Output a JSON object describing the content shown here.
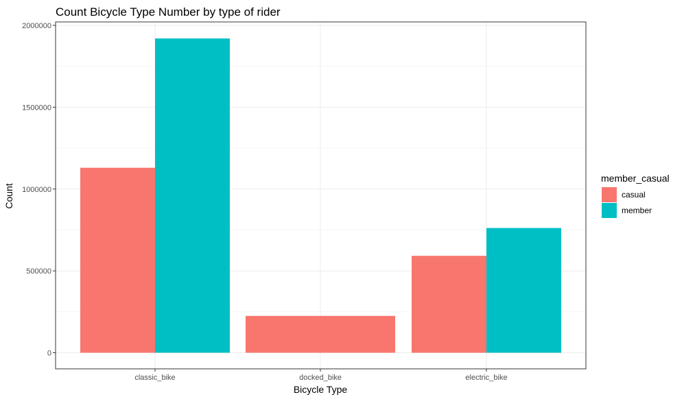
{
  "chart_data": {
    "type": "bar",
    "title": "Count Bicycle Type Number by type of rider",
    "xlabel": "Bicycle Type",
    "ylabel": "Count",
    "categories": [
      "classic_bike",
      "docked_bike",
      "electric_bike"
    ],
    "series": [
      {
        "name": "casual",
        "color": "#F8766D",
        "values": [
          1130000,
          225000,
          592000
        ]
      },
      {
        "name": "member",
        "color": "#00BFC4",
        "values": [
          1920000,
          null,
          762000
        ]
      }
    ],
    "ylim": [
      0,
      2000000
    ],
    "yticks": [
      0,
      500000,
      1000000,
      1500000,
      2000000
    ],
    "ytick_labels": [
      "0",
      "500000",
      "1000000",
      "1500000",
      "2000000"
    ],
    "legend": {
      "title": "member_casual",
      "position": "right"
    },
    "grid": true
  }
}
